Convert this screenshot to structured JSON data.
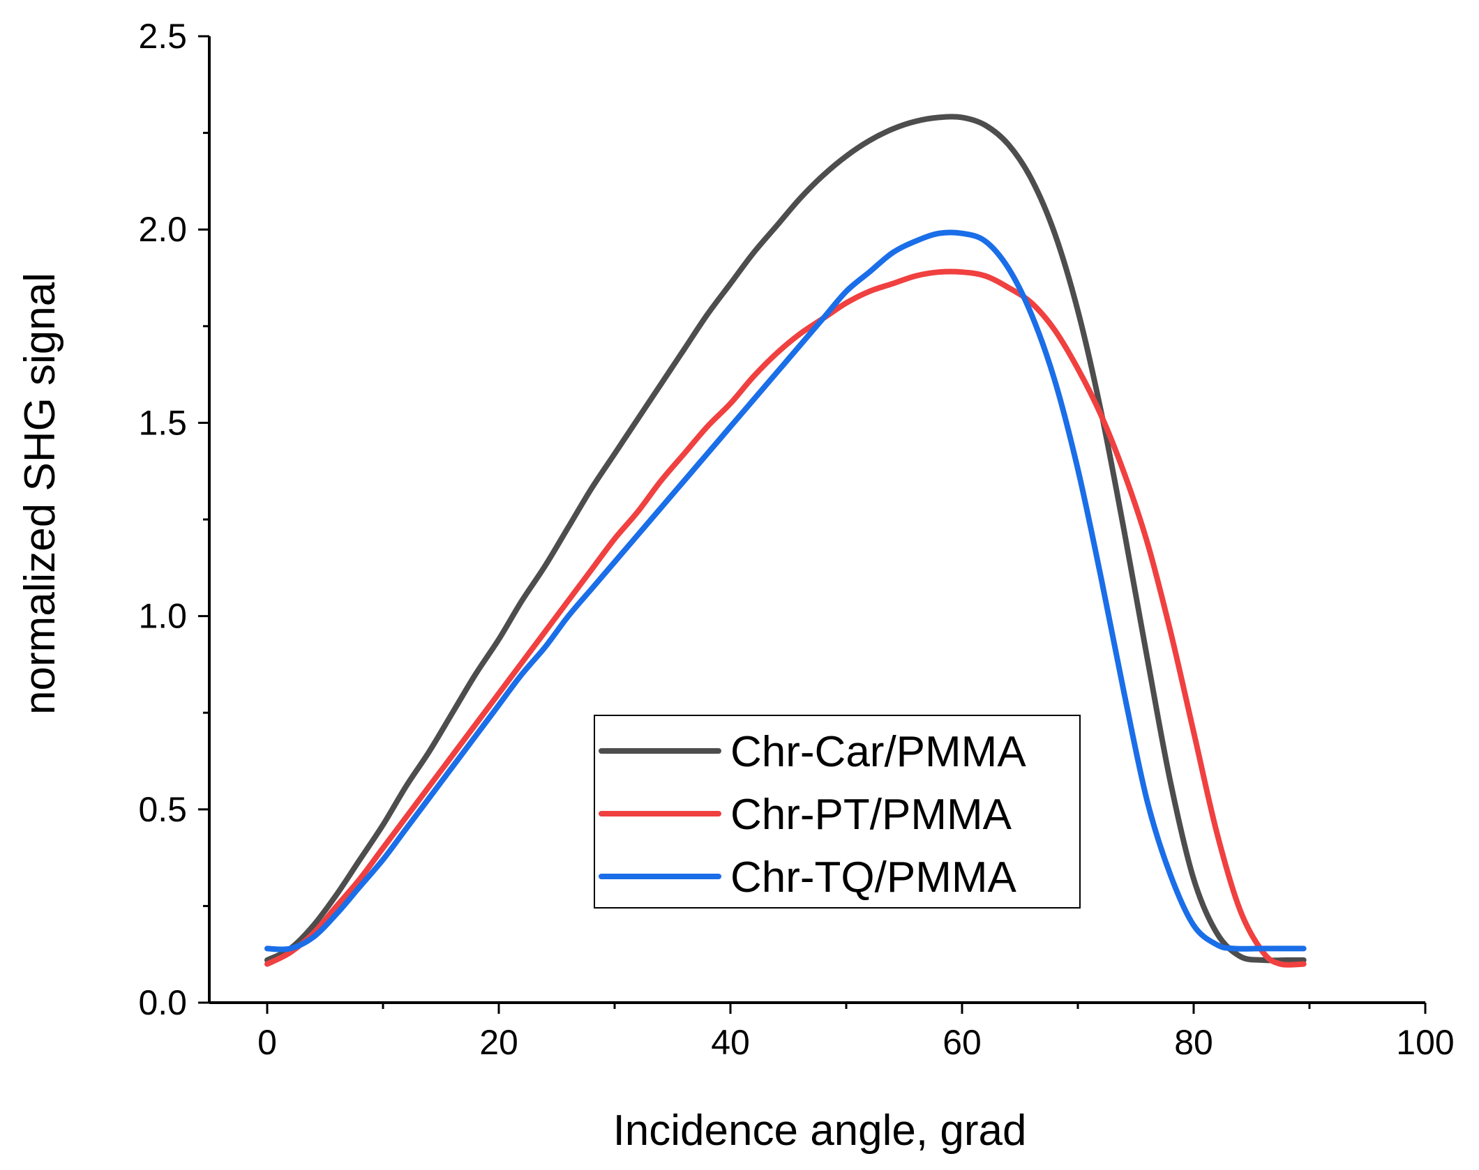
{
  "chart_data": {
    "type": "line",
    "title": "",
    "xlabel": "Incidence angle, grad",
    "ylabel": "normalized SHG signal",
    "xlim": [
      -5,
      100
    ],
    "ylim": [
      0,
      2.5
    ],
    "xticks": [
      0,
      20,
      40,
      60,
      80,
      100
    ],
    "xtick_labels": [
      "0",
      "20",
      "40",
      "60",
      "80",
      "100"
    ],
    "xminor": [
      10,
      30,
      50,
      70,
      90
    ],
    "yticks": [
      0,
      0.5,
      1.0,
      1.5,
      2.0,
      2.5
    ],
    "ytick_labels": [
      "0.0",
      "0.5",
      "1.0",
      "1.5",
      "2.0",
      "2.5"
    ],
    "yminor": [
      0.25,
      0.75,
      1.25,
      1.75,
      2.25
    ],
    "grid": false,
    "legend_position": "center-bottom",
    "series": [
      {
        "name": "Chr-Car/PMMA",
        "color": "#4d4d4d",
        "x": [
          0,
          2,
          4,
          6,
          8,
          10,
          12,
          14,
          16,
          18,
          20,
          22,
          24,
          26,
          28,
          30,
          32,
          34,
          36,
          38,
          40,
          42,
          44,
          46,
          48,
          50,
          52,
          54,
          56,
          58,
          60,
          62,
          64,
          66,
          68,
          70,
          72,
          74,
          76,
          78,
          80,
          82,
          84,
          86,
          88,
          89.5
        ],
        "y": [
          0.11,
          0.14,
          0.2,
          0.28,
          0.37,
          0.46,
          0.56,
          0.65,
          0.75,
          0.85,
          0.94,
          1.04,
          1.13,
          1.23,
          1.33,
          1.42,
          1.51,
          1.6,
          1.69,
          1.78,
          1.86,
          1.94,
          2.01,
          2.08,
          2.14,
          2.19,
          2.23,
          2.26,
          2.28,
          2.29,
          2.29,
          2.27,
          2.22,
          2.13,
          1.99,
          1.79,
          1.53,
          1.22,
          0.89,
          0.57,
          0.32,
          0.18,
          0.12,
          0.11,
          0.11,
          0.11
        ]
      },
      {
        "name": "Chr-PT/PMMA",
        "color": "#f04040",
        "x": [
          0,
          2,
          4,
          6,
          8,
          10,
          12,
          14,
          16,
          18,
          20,
          22,
          24,
          26,
          28,
          30,
          32,
          34,
          36,
          38,
          40,
          42,
          44,
          46,
          48,
          50,
          52,
          54,
          56,
          58,
          60,
          62,
          64,
          66,
          68,
          70,
          72,
          74,
          76,
          78,
          80,
          82,
          84,
          86,
          87.5,
          89.5
        ],
        "y": [
          0.1,
          0.13,
          0.18,
          0.25,
          0.32,
          0.4,
          0.48,
          0.56,
          0.64,
          0.72,
          0.8,
          0.88,
          0.96,
          1.04,
          1.12,
          1.2,
          1.27,
          1.35,
          1.42,
          1.49,
          1.55,
          1.62,
          1.68,
          1.73,
          1.77,
          1.81,
          1.84,
          1.86,
          1.88,
          1.89,
          1.89,
          1.88,
          1.85,
          1.81,
          1.74,
          1.64,
          1.52,
          1.37,
          1.19,
          0.96,
          0.7,
          0.44,
          0.24,
          0.13,
          0.1,
          0.1
        ]
      },
      {
        "name": "Chr-TQ/PMMA",
        "color": "#1a6ee8",
        "x": [
          0,
          2,
          4,
          6,
          8,
          10,
          12,
          14,
          16,
          18,
          20,
          22,
          24,
          26,
          28,
          30,
          32,
          34,
          36,
          38,
          40,
          42,
          44,
          46,
          48,
          50,
          52,
          54,
          56,
          58,
          60,
          62,
          64,
          66,
          68,
          70,
          72,
          74,
          76,
          78,
          80,
          82,
          83.5,
          86,
          89.5
        ],
        "y": [
          0.14,
          0.14,
          0.17,
          0.23,
          0.3,
          0.37,
          0.45,
          0.53,
          0.61,
          0.69,
          0.77,
          0.85,
          0.92,
          1.0,
          1.07,
          1.14,
          1.21,
          1.28,
          1.35,
          1.42,
          1.49,
          1.56,
          1.63,
          1.7,
          1.77,
          1.84,
          1.89,
          1.94,
          1.97,
          1.99,
          1.99,
          1.97,
          1.9,
          1.78,
          1.61,
          1.38,
          1.1,
          0.8,
          0.52,
          0.33,
          0.2,
          0.15,
          0.14,
          0.14,
          0.14
        ]
      }
    ]
  }
}
